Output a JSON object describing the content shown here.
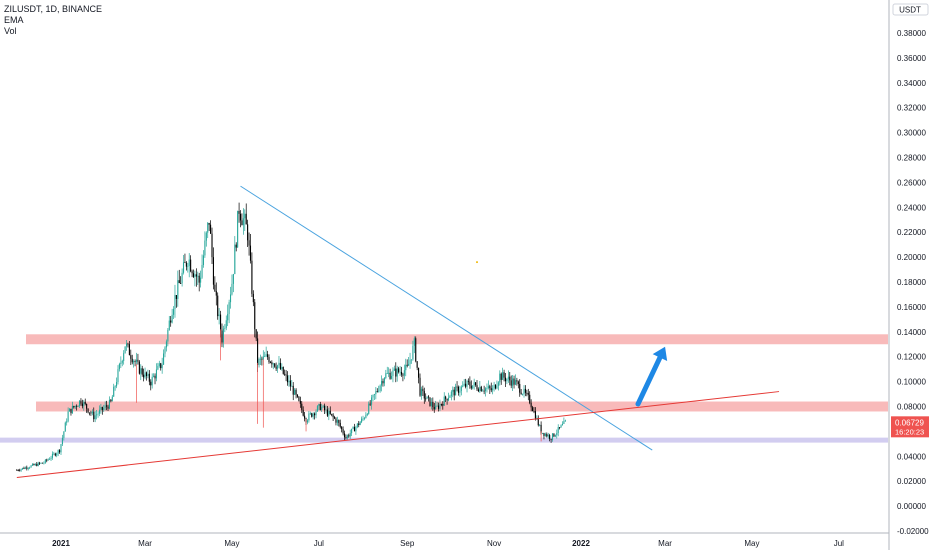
{
  "legend": {
    "symbol": "ZILUSDT, 1D, BINANCE",
    "indicators": [
      "EMA",
      "Vol"
    ]
  },
  "price_axis": {
    "currency": "USDT",
    "ticks": [
      "0.38000",
      "0.36000",
      "0.34000",
      "0.32000",
      "0.30000",
      "0.28000",
      "0.26000",
      "0.24000",
      "0.22000",
      "0.20000",
      "0.18000",
      "0.16000",
      "0.14000",
      "0.12000",
      "0.10000",
      "0.08000",
      "0.06000",
      "0.04000",
      "0.02000",
      "0.00000",
      "-0.02000"
    ],
    "current_price": "0.06729",
    "countdown": "16:20:23"
  },
  "time_axis": {
    "labels": [
      "2021",
      "Mar",
      "May",
      "Jul",
      "Sep",
      "Nov",
      "2022",
      "Mar",
      "May",
      "Jul"
    ],
    "bold": [
      "2021",
      "2022"
    ]
  },
  "colors": {
    "up": "#26a69a",
    "down": "#000000",
    "zone": "#f5a3a3",
    "support": "#cdc8ee",
    "trendline": "#4aa3df",
    "uptrend": "#e53935",
    "arrow": "#1e88e5",
    "price_label": "#ef5350"
  },
  "chart_data": {
    "type": "candlestick",
    "symbol": "ZILUSDT",
    "interval": "1D",
    "exchange": "BINANCE",
    "ylim": [
      -0.02,
      0.39
    ],
    "xlim": [
      "2020-12-01",
      "2022-07-31"
    ],
    "last_price": 0.06729,
    "close_path": [
      [
        "2020-12-01",
        0.029
      ],
      [
        "2020-12-20",
        0.035
      ],
      [
        "2020-12-31",
        0.045
      ],
      [
        "2021-01-06",
        0.075
      ],
      [
        "2021-01-15",
        0.085
      ],
      [
        "2021-01-24",
        0.072
      ],
      [
        "2021-02-05",
        0.083
      ],
      [
        "2021-02-15",
        0.13
      ],
      [
        "2021-02-25",
        0.11
      ],
      [
        "2021-03-05",
        0.1
      ],
      [
        "2021-03-13",
        0.115
      ],
      [
        "2021-03-20",
        0.16
      ],
      [
        "2021-03-31",
        0.2
      ],
      [
        "2021-04-08",
        0.18
      ],
      [
        "2021-04-15",
        0.23
      ],
      [
        "2021-04-19",
        0.17
      ],
      [
        "2021-04-24",
        0.135
      ],
      [
        "2021-05-01",
        0.18
      ],
      [
        "2021-05-06",
        0.24
      ],
      [
        "2021-05-12",
        0.22
      ],
      [
        "2021-05-19",
        0.115
      ],
      [
        "2021-05-26",
        0.12
      ],
      [
        "2021-06-03",
        0.112
      ],
      [
        "2021-06-12",
        0.095
      ],
      [
        "2021-06-22",
        0.07
      ],
      [
        "2021-07-02",
        0.08
      ],
      [
        "2021-07-14",
        0.068
      ],
      [
        "2021-07-20",
        0.055
      ],
      [
        "2021-08-01",
        0.07
      ],
      [
        "2021-08-16",
        0.105
      ],
      [
        "2021-09-01",
        0.11
      ],
      [
        "2021-09-06",
        0.13
      ],
      [
        "2021-09-10",
        0.092
      ],
      [
        "2021-09-21",
        0.078
      ],
      [
        "2021-10-01",
        0.09
      ],
      [
        "2021-10-14",
        0.098
      ],
      [
        "2021-10-31",
        0.093
      ],
      [
        "2021-11-05",
        0.105
      ],
      [
        "2021-11-16",
        0.099
      ],
      [
        "2021-11-26",
        0.085
      ],
      [
        "2021-12-04",
        0.06
      ],
      [
        "2021-12-11",
        0.055
      ],
      [
        "2021-12-21",
        0.067
      ]
    ],
    "zones": [
      {
        "from": 0.13,
        "to": 0.138
      },
      {
        "from": 0.076,
        "to": 0.084
      },
      {
        "from": 0.051,
        "to": 0.055
      }
    ],
    "trendlines": [
      {
        "from": [
          "2021-05-07",
          0.257
        ],
        "to": [
          "2022-02-20",
          0.045
        ]
      },
      {
        "from": [
          "2020-12-01",
          0.023
        ],
        "to": [
          "2022-05-20",
          0.092
        ]
      }
    ],
    "arrow": {
      "from": [
        "2022-02-10",
        0.082
      ],
      "to": [
        "2022-03-01",
        0.128
      ]
    },
    "marker": {
      "at": [
        "2021-10-20",
        0.196
      ]
    }
  }
}
